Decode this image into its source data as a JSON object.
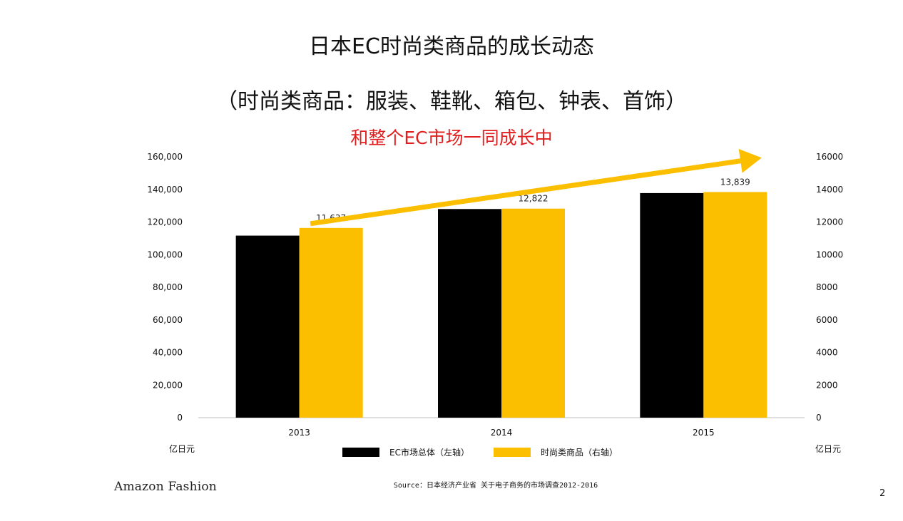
{
  "slide": {
    "title": "日本EC时尚类商品的成长动态",
    "subtitle": "（时尚类商品：服装、鞋靴、箱包、钟表、首饰）",
    "highlight": "和整个EC市场一同成长中",
    "highlight_color": "#e02020",
    "unit_left": "亿日元",
    "unit_right": "亿日元",
    "source": "Source：日本经济产业省 关于电子商务的市场调查2012-2016",
    "brand": "Amazon Fashion",
    "page_number": "2"
  },
  "chart_data": {
    "type": "bar",
    "categories": [
      "2013",
      "2014",
      "2015"
    ],
    "series": [
      {
        "name": "EC市场总体（左轴）",
        "axis": "left",
        "color": "#000000",
        "values": [
          111660,
          127970,
          137746
        ],
        "labels": []
      },
      {
        "name": "时尚类商品（右轴）",
        "axis": "right",
        "color": "#fbbf00",
        "values": [
          11637,
          12822,
          13839
        ],
        "labels": [
          "11,637",
          "12,822",
          "13,839"
        ]
      }
    ],
    "y_left": {
      "min": 0,
      "max": 160000,
      "ticks": [
        "0",
        "20,000",
        "40,000",
        "60,000",
        "80,000",
        "100,000",
        "120,000",
        "140,000",
        "160,000"
      ]
    },
    "y_right": {
      "min": 0,
      "max": 16000,
      "ticks": [
        "0",
        "2000",
        "4000",
        "6000",
        "8000",
        "10000",
        "12000",
        "14000",
        "16000"
      ]
    },
    "grid": false,
    "legend": "bottom",
    "trend_arrow": {
      "color": "#fbbf00"
    }
  }
}
